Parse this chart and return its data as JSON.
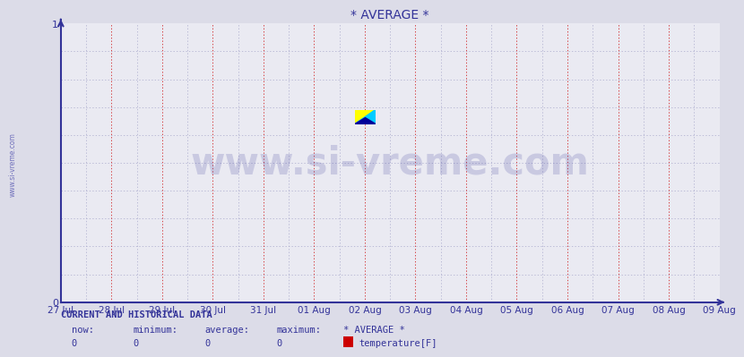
{
  "title": "* AVERAGE *",
  "title_color": "#333399",
  "background_color": "#dcdce8",
  "plot_bg_color": "#eaeaf2",
  "x_labels": [
    "27 Jul",
    "28 Jul",
    "29 Jul",
    "30 Jul",
    "31 Jul",
    "01 Aug",
    "02 Aug",
    "03 Aug",
    "04 Aug",
    "05 Aug",
    "06 Aug",
    "07 Aug",
    "08 Aug",
    "09 Aug"
  ],
  "y_min": 0,
  "y_max": 1,
  "axis_color": "#333399",
  "grid_color_major": "#cc0000",
  "grid_color_minor": "#aaaacc",
  "watermark_text": "www.si-vreme.com",
  "watermark_color": "#333399",
  "watermark_alpha": 0.18,
  "sidebar_text": "www.si-vreme.com",
  "sidebar_color": "#4444aa",
  "footer_title": "CURRENT AND HISTORICAL DATA",
  "footer_labels": [
    "now:",
    "minimum:",
    "average:",
    "maximum:",
    "* AVERAGE *"
  ],
  "footer_values": [
    "0",
    "0",
    "0",
    "0"
  ],
  "footer_series": "temperature[F]",
  "footer_color": "#333399",
  "footer_swatch_color": "#cc0000",
  "logo_yellow": "#ffff00",
  "logo_cyan": "#00ccff",
  "logo_blue": "#000099"
}
